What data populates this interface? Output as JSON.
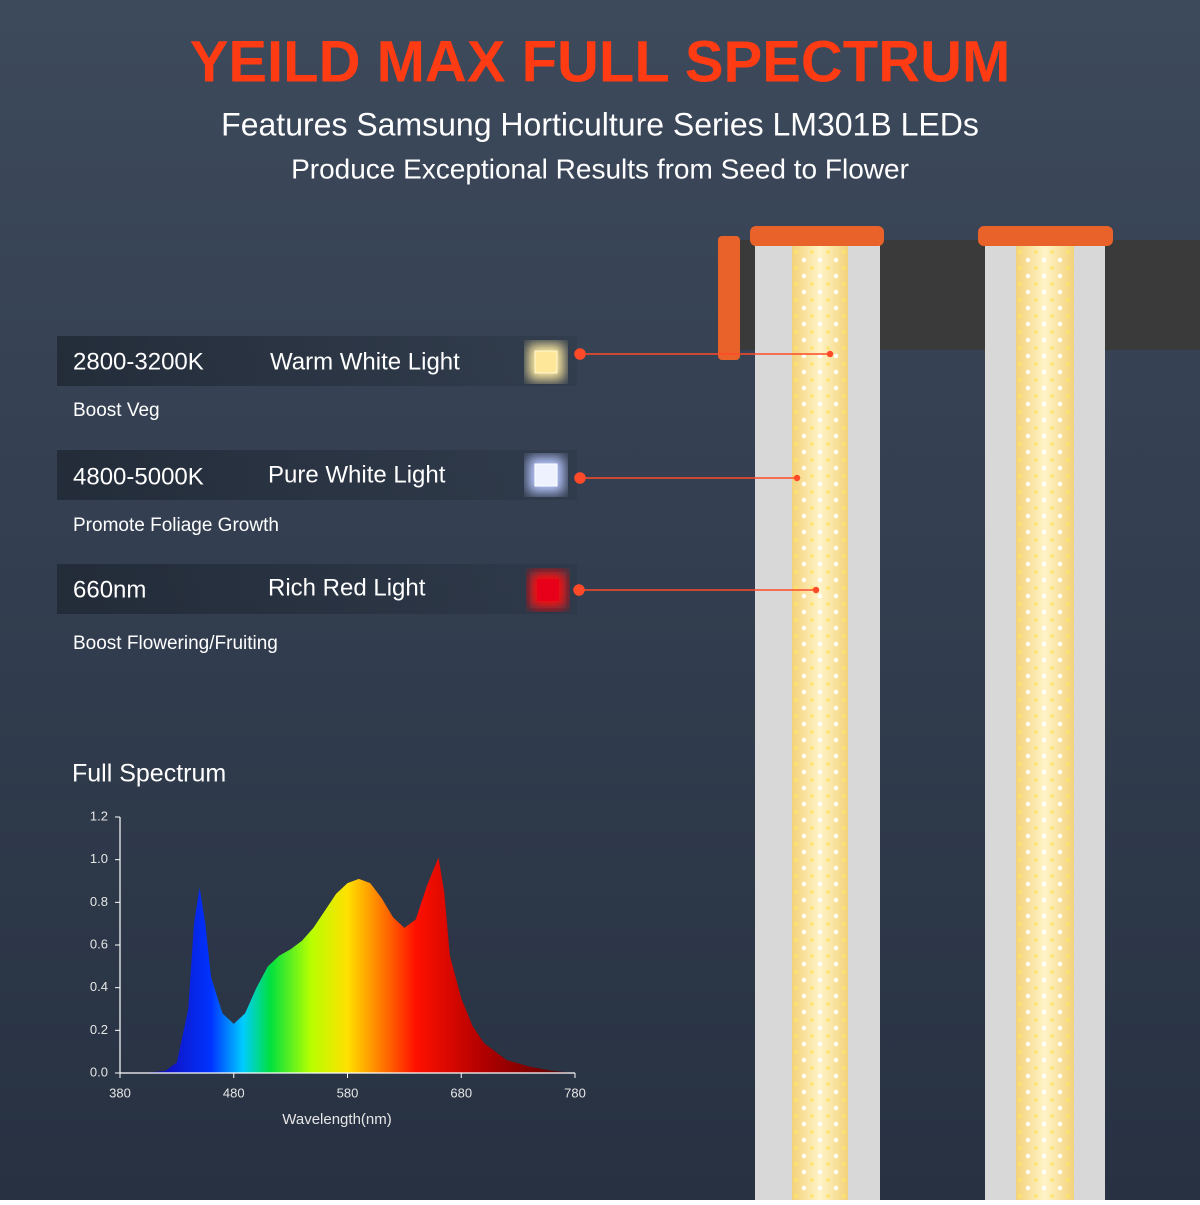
{
  "header": {
    "title": "YEILD MAX FULL SPECTRUM",
    "subtitle": "Features Samsung Horticulture Series LM301B LEDs",
    "tagline": "Produce Exceptional Results from Seed to Flower"
  },
  "features": [
    {
      "spec": "2800-3200K",
      "name": "Warm White Light",
      "benefit": "Boost Veg"
    },
    {
      "spec": "4800-5000K",
      "name": "Pure White Light",
      "benefit": "Promote Foliage Growth"
    },
    {
      "spec": "660nm",
      "name": "Rich Red Light",
      "benefit": "Boost Flowering/Fruiting"
    }
  ],
  "chart_data": {
    "type": "area",
    "title": "Full Spectrum",
    "x_label": "Wavelength(nm)",
    "x": [
      380,
      400,
      420,
      430,
      440,
      445,
      450,
      455,
      460,
      470,
      480,
      490,
      500,
      510,
      520,
      530,
      540,
      550,
      560,
      570,
      580,
      590,
      600,
      610,
      620,
      630,
      640,
      650,
      660,
      665,
      670,
      680,
      690,
      700,
      720,
      740,
      760,
      780
    ],
    "values": [
      0,
      0,
      0.01,
      0.05,
      0.3,
      0.7,
      0.87,
      0.7,
      0.45,
      0.28,
      0.23,
      0.28,
      0.4,
      0.5,
      0.55,
      0.58,
      0.62,
      0.68,
      0.76,
      0.84,
      0.89,
      0.91,
      0.89,
      0.82,
      0.73,
      0.68,
      0.72,
      0.88,
      1.01,
      0.85,
      0.55,
      0.35,
      0.22,
      0.14,
      0.06,
      0.03,
      0.01,
      0
    ],
    "xlim": [
      380,
      780
    ],
    "ylim": [
      0,
      1.2
    ],
    "xticks": [
      380,
      480,
      580,
      680,
      780
    ],
    "yticks": [
      {
        "value": 0,
        "label": "0.0"
      },
      0.2,
      0.4,
      0.6,
      0.8,
      {
        "value": 1,
        "label": "1.0"
      },
      1.2
    ]
  }
}
